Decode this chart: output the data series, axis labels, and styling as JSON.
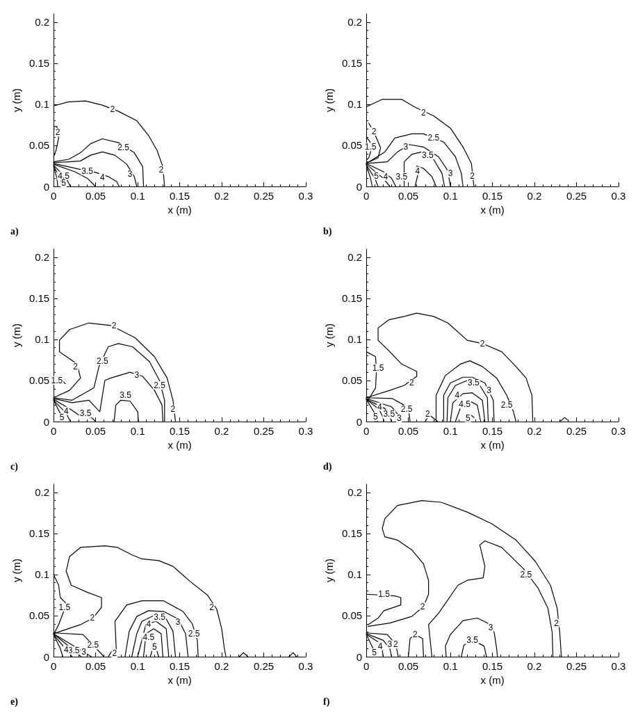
{
  "chart_data": [
    {
      "type": "line",
      "title": "a)",
      "xlabel": "x (m)",
      "ylabel": "y (m)",
      "xlim": [
        0,
        0.3
      ],
      "ylim": [
        0,
        0.21
      ],
      "xticks": [
        0,
        0.05,
        0.1,
        0.15,
        0.2,
        0.25,
        0.3
      ],
      "yticks": [
        0,
        0.05,
        0.1,
        0.15,
        0.2
      ],
      "marker": "none",
      "line_style": "solid",
      "series": [
        {
          "color": "#000000",
          "x": [
            0,
            0.018,
            0.038,
            0.058,
            0.076,
            0.099,
            0.113,
            0.123,
            0.13,
            0.132
          ],
          "values": [
            0.098,
            0.103,
            0.104,
            0.099,
            0.092,
            0.08,
            0.062,
            0.044,
            0.024,
            0
          ]
        },
        {
          "color": "#000000",
          "x": [
            0,
            0.004,
            0.006,
            0.003,
            0
          ],
          "values": [
            0.073,
            0.073,
            0.059,
            0.044,
            0.036
          ]
        },
        {
          "color": "#000000",
          "x": [
            0,
            0.018,
            0.032,
            0.044,
            0.058,
            0.078,
            0.096,
            0.106,
            0.107
          ],
          "values": [
            0.03,
            0.033,
            0.041,
            0.052,
            0.058,
            0.053,
            0.041,
            0.024,
            0
          ]
        },
        {
          "color": "#000000",
          "x": [
            0,
            0.018,
            0.032,
            0.044,
            0.058,
            0.073,
            0.087,
            0.096,
            0.099
          ],
          "values": [
            0.029,
            0.03,
            0.031,
            0.038,
            0.042,
            0.038,
            0.027,
            0.012,
            0
          ]
        },
        {
          "color": "#000000",
          "x": [
            0,
            0.03,
            0.05,
            0.065,
            0.075,
            0.078
          ],
          "values": [
            0.028,
            0.021,
            0.017,
            0.012,
            0.006,
            0
          ]
        },
        {
          "color": "#000000",
          "x": [
            0,
            0.025,
            0.04,
            0.05
          ],
          "values": [
            0.027,
            0.018,
            0.01,
            0
          ]
        },
        {
          "color": "#000000",
          "x": [
            0,
            0.015,
            0.02
          ],
          "values": [
            0.026,
            0.01,
            0
          ]
        },
        {
          "color": "#000000",
          "x": [
            0,
            0.008,
            0.01
          ],
          "values": [
            0.025,
            0.01,
            0
          ]
        },
        {
          "color": "#000000",
          "x": [
            0,
            0.004,
            0.005
          ],
          "values": [
            0.024,
            0.01,
            0
          ]
        }
      ],
      "annotations": [
        {
          "text": "2",
          "x": 0.07,
          "y": 0.094
        },
        {
          "text": "2",
          "x": 0.005,
          "y": 0.066
        },
        {
          "text": "2",
          "x": 0.128,
          "y": 0.02
        },
        {
          "text": "2.5",
          "x": 0.083,
          "y": 0.047
        },
        {
          "text": "3",
          "x": 0.091,
          "y": 0.015
        },
        {
          "text": "3.5",
          "x": 0.04,
          "y": 0.019
        },
        {
          "text": "4",
          "x": 0.058,
          "y": 0.011
        },
        {
          "text": "4.5",
          "x": 0.012,
          "y": 0.013
        },
        {
          "text": "5",
          "x": 0.012,
          "y": 0.004
        }
      ]
    },
    {
      "type": "line",
      "title": "b)",
      "xlabel": "x (m)",
      "ylabel": "y (m)",
      "xlim": [
        0,
        0.3
      ],
      "ylim": [
        0,
        0.21
      ],
      "xticks": [
        0,
        0.05,
        0.1,
        0.15,
        0.2,
        0.25,
        0.3
      ],
      "yticks": [
        0,
        0.05,
        0.1,
        0.15,
        0.2
      ],
      "marker": "none",
      "line_style": "solid",
      "series": [
        {
          "color": "#000000",
          "x": [
            0,
            0.019,
            0.042,
            0.057,
            0.08,
            0.1,
            0.115,
            0.125,
            0.128
          ],
          "values": [
            0.097,
            0.106,
            0.106,
            0.097,
            0.086,
            0.071,
            0.048,
            0.028,
            0
          ]
        },
        {
          "color": "#000000",
          "x": [
            0.003,
            0.01,
            0.017,
            0.014,
            0.004
          ],
          "values": [
            0.077,
            0.064,
            0.047,
            0.035,
            0.03
          ]
        },
        {
          "color": "#000000",
          "x": [
            0,
            0.004,
            0.006,
            0.003,
            0
          ],
          "values": [
            0.06,
            0.055,
            0.045,
            0.035,
            0.032
          ]
        },
        {
          "color": "#000000",
          "x": [
            0,
            0.022,
            0.034,
            0.054,
            0.068,
            0.092,
            0.106,
            0.113,
            0.115
          ],
          "values": [
            0.028,
            0.042,
            0.059,
            0.064,
            0.064,
            0.054,
            0.036,
            0.016,
            0
          ]
        },
        {
          "color": "#000000",
          "x": [
            0,
            0.025,
            0.037,
            0.051,
            0.068,
            0.086,
            0.097,
            0.1
          ],
          "values": [
            0.028,
            0.03,
            0.042,
            0.051,
            0.048,
            0.036,
            0.019,
            0
          ]
        },
        {
          "color": "#000000",
          "x": [
            0.045,
            0.045,
            0.054,
            0.066,
            0.08,
            0.09,
            0.093
          ],
          "values": [
            0,
            0.03,
            0.039,
            0.042,
            0.033,
            0.016,
            0
          ]
        },
        {
          "color": "#000000",
          "x": [
            0.058,
            0.061,
            0.06,
            0.068,
            0.078,
            0.083
          ],
          "values": [
            0,
            0.013,
            0.025,
            0.022,
            0.012,
            0
          ]
        },
        {
          "color": "#000000",
          "x": [
            0,
            0.02,
            0.03,
            0.035
          ],
          "values": [
            0.028,
            0.018,
            0.01,
            0
          ]
        },
        {
          "color": "#000000",
          "x": [
            0,
            0.02,
            0.028
          ],
          "values": [
            0.027,
            0.01,
            0
          ]
        },
        {
          "color": "#000000",
          "x": [
            0,
            0.01,
            0.014
          ],
          "values": [
            0.026,
            0.01,
            0
          ]
        },
        {
          "color": "#000000",
          "x": [
            0,
            0.005,
            0.007
          ],
          "values": [
            0.026,
            0.01,
            0
          ]
        }
      ],
      "annotations": [
        {
          "text": "2",
          "x": 0.068,
          "y": 0.09
        },
        {
          "text": "2",
          "x": 0.126,
          "y": 0.013
        },
        {
          "text": "2",
          "x": 0.009,
          "y": 0.067
        },
        {
          "text": "1.5",
          "x": 0.005,
          "y": 0.048
        },
        {
          "text": "2.5",
          "x": 0.08,
          "y": 0.059
        },
        {
          "text": "3",
          "x": 0.047,
          "y": 0.048
        },
        {
          "text": "3.5",
          "x": 0.073,
          "y": 0.038
        },
        {
          "text": "3",
          "x": 0.1,
          "y": 0.016
        },
        {
          "text": "4",
          "x": 0.061,
          "y": 0.019
        },
        {
          "text": "3.5",
          "x": 0.042,
          "y": 0.012
        },
        {
          "text": "4",
          "x": 0.023,
          "y": 0.012
        },
        {
          "text": "5",
          "x": 0.012,
          "y": 0.013
        }
      ]
    },
    {
      "type": "line",
      "title": "c)",
      "xlabel": "x (m)",
      "ylabel": "y (m)",
      "xlim": [
        0,
        0.3
      ],
      "ylim": [
        0,
        0.21
      ],
      "xticks": [
        0,
        0.05,
        0.1,
        0.15,
        0.2,
        0.25,
        0.3
      ],
      "yticks": [
        0,
        0.05,
        0.1,
        0.15,
        0.2
      ],
      "marker": "none",
      "line_style": "solid",
      "series": [
        {
          "color": "#000000",
          "x": [
            0,
            0.019,
            0.032,
            0.028,
            0.007,
            0.007,
            0.019,
            0.042,
            0.068,
            0.097,
            0.12,
            0.135,
            0.142,
            0.145
          ],
          "values": [
            0.029,
            0.038,
            0.053,
            0.07,
            0.085,
            0.099,
            0.112,
            0.12,
            0.117,
            0.102,
            0.079,
            0.053,
            0.026,
            0
          ]
        },
        {
          "color": "#000000",
          "x": [
            0,
            0.01,
            0.014
          ],
          "values": [
            0.05,
            0.05,
            0.046
          ]
        },
        {
          "color": "#000000",
          "x": [
            0,
            0.022,
            0.048,
            0.054,
            0.065,
            0.077,
            0.094,
            0.114,
            0.126,
            0.132,
            0.132
          ],
          "values": [
            0.029,
            0.026,
            0.041,
            0.067,
            0.091,
            0.095,
            0.091,
            0.073,
            0.05,
            0.026,
            0
          ]
        },
        {
          "color": "#000000",
          "x": [
            0,
            0.022,
            0.042,
            0.055,
            0.061,
            0.068,
            0.091,
            0.106,
            0.12,
            0.129,
            0.13
          ],
          "values": [
            0.028,
            0.023,
            0.026,
            0.012,
            0.05,
            0.053,
            0.06,
            0.055,
            0.038,
            0.02,
            0
          ]
        },
        {
          "color": "#000000",
          "x": [
            0.072,
            0.074,
            0.08,
            0.091,
            0.1,
            0.101
          ],
          "values": [
            0,
            0.02,
            0.026,
            0.025,
            0.012,
            0
          ]
        },
        {
          "color": "#000000",
          "x": [
            0,
            0.02,
            0.03,
            0.045,
            0.05
          ],
          "values": [
            0.027,
            0.015,
            0.008,
            0.005,
            0
          ]
        },
        {
          "color": "#000000",
          "x": [
            0,
            0.015,
            0.02
          ],
          "values": [
            0.026,
            0.01,
            0
          ]
        },
        {
          "color": "#000000",
          "x": [
            0,
            0.008,
            0.01
          ],
          "values": [
            0.026,
            0.01,
            0
          ]
        }
      ],
      "annotations": [
        {
          "text": "2",
          "x": 0.072,
          "y": 0.117
        },
        {
          "text": "2",
          "x": 0.026,
          "y": 0.067
        },
        {
          "text": "1.5",
          "x": 0.004,
          "y": 0.05
        },
        {
          "text": "2.5",
          "x": 0.058,
          "y": 0.074
        },
        {
          "text": "3",
          "x": 0.099,
          "y": 0.057
        },
        {
          "text": "2.5",
          "x": 0.126,
          "y": 0.044
        },
        {
          "text": "2",
          "x": 0.142,
          "y": 0.015
        },
        {
          "text": "3.5",
          "x": 0.0855,
          "y": 0.032
        },
        {
          "text": "3.5",
          "x": 0.038,
          "y": 0.01
        },
        {
          "text": "4",
          "x": 0.015,
          "y": 0.013
        },
        {
          "text": "5",
          "x": 0.01,
          "y": 0.005
        }
      ]
    },
    {
      "type": "line",
      "title": "d)",
      "xlabel": "x (m)",
      "ylabel": "y (m)",
      "xlim": [
        0,
        0.3
      ],
      "ylim": [
        0,
        0.21
      ],
      "xticks": [
        0,
        0.05,
        0.1,
        0.15,
        0.2,
        0.25,
        0.3
      ],
      "yticks": [
        0,
        0.05,
        0.1,
        0.15,
        0.2
      ],
      "marker": "none",
      "line_style": "solid",
      "series": [
        {
          "color": "#000000",
          "x": [
            0,
            0.028,
            0.045,
            0.06,
            0.06,
            0.042,
            0.028,
            0.014,
            0.014,
            0.027,
            0.045,
            0.06,
            0.08,
            0.097,
            0.12,
            0.138,
            0.161,
            0.178,
            0.19,
            0.197,
            0.198
          ],
          "values": [
            0.029,
            0.038,
            0.044,
            0.055,
            0.061,
            0.07,
            0.085,
            0.099,
            0.114,
            0.124,
            0.128,
            0.132,
            0.128,
            0.12,
            0.099,
            0.095,
            0.085,
            0.067,
            0.053,
            0.032,
            0
          ]
        },
        {
          "color": "#000000",
          "x": [
            0,
            0.011,
            0.012,
            0.011,
            0.002
          ],
          "values": [
            0.085,
            0.079,
            0.061,
            0.041,
            0.026
          ]
        },
        {
          "color": "#000000",
          "x": [
            0.07,
            0.075,
            0.085
          ],
          "values": [
            0,
            0.008,
            0
          ]
        },
        {
          "color": "#000000",
          "x": [
            0.083,
            0.083,
            0.094,
            0.112,
            0.123,
            0.138,
            0.155,
            0.167,
            0.175,
            0.178
          ],
          "values": [
            0,
            0.032,
            0.056,
            0.07,
            0.074,
            0.067,
            0.053,
            0.032,
            0.012,
            0
          ]
        },
        {
          "color": "#000000",
          "x": [
            0.092,
            0.092,
            0.1,
            0.115,
            0.126,
            0.141,
            0.151,
            0.152
          ],
          "values": [
            0,
            0.032,
            0.047,
            0.054,
            0.054,
            0.047,
            0.026,
            0
          ]
        },
        {
          "color": "#000000",
          "x": [
            0.096,
            0.097,
            0.106,
            0.12,
            0.135,
            0.144,
            0.145
          ],
          "values": [
            0,
            0.029,
            0.044,
            0.05,
            0.044,
            0.029,
            0
          ]
        },
        {
          "color": "#000000",
          "x": [
            0.1,
            0.103,
            0.115,
            0.126,
            0.138,
            0.141
          ],
          "values": [
            0,
            0.023,
            0.034,
            0.035,
            0.026,
            0
          ]
        },
        {
          "color": "#000000",
          "x": [
            0.106,
            0.112,
            0.123,
            0.132,
            0.136
          ],
          "values": [
            0,
            0.017,
            0.025,
            0.02,
            0
          ]
        },
        {
          "color": "#000000",
          "x": [
            0.12,
            0.123,
            0.128
          ],
          "values": [
            0,
            0.009,
            0.005
          ]
        },
        {
          "color": "#000000",
          "x": [
            0.23,
            0.236,
            0.239
          ],
          "values": [
            0,
            0.005,
            0.002
          ]
        },
        {
          "color": "#000000",
          "x": [
            0,
            0.031,
            0.045,
            0.051,
            0.052
          ],
          "values": [
            0.029,
            0.028,
            0.02,
            0.009,
            0
          ]
        },
        {
          "color": "#000000",
          "x": [
            0,
            0.03,
            0.038,
            0.04
          ],
          "values": [
            0.028,
            0.018,
            0.008,
            0
          ]
        },
        {
          "color": "#000000",
          "x": [
            0,
            0.022,
            0.028,
            0.03
          ],
          "values": [
            0.027,
            0.016,
            0.006,
            0
          ]
        },
        {
          "color": "#000000",
          "x": [
            0,
            0.015,
            0.02,
            0.021
          ],
          "values": [
            0.027,
            0.015,
            0.005,
            0
          ]
        },
        {
          "color": "#000000",
          "x": [
            0,
            0.01,
            0.013
          ],
          "values": [
            0.027,
            0.01,
            0
          ]
        }
      ],
      "annotations": [
        {
          "text": "2",
          "x": 0.138,
          "y": 0.095
        },
        {
          "text": "2",
          "x": 0.054,
          "y": 0.047
        },
        {
          "text": "1.5",
          "x": 0.014,
          "y": 0.065
        },
        {
          "text": "2",
          "x": 0.073,
          "y": 0.009
        },
        {
          "text": "2.5",
          "x": 0.167,
          "y": 0.02
        },
        {
          "text": "3",
          "x": 0.146,
          "y": 0.038
        },
        {
          "text": "3.5",
          "x": 0.1275,
          "y": 0.047
        },
        {
          "text": "4",
          "x": 0.108,
          "y": 0.032
        },
        {
          "text": "4.5",
          "x": 0.117,
          "y": 0.021
        },
        {
          "text": "5",
          "x": 0.121,
          "y": 0.0045
        },
        {
          "text": "2.5",
          "x": 0.048,
          "y": 0.015
        },
        {
          "text": "3",
          "x": 0.039,
          "y": 0.004
        },
        {
          "text": "3.5",
          "x": 0.027,
          "y": 0.009
        },
        {
          "text": "4",
          "x": 0.016,
          "y": 0.018
        },
        {
          "text": "5",
          "x": 0.011,
          "y": 0.006
        }
      ]
    },
    {
      "type": "line",
      "title": "e)",
      "xlabel": "x (m)",
      "ylabel": "y (m)",
      "xlim": [
        0,
        0.3
      ],
      "ylim": [
        0,
        0.21
      ],
      "xticks": [
        0,
        0.05,
        0.1,
        0.15,
        0.2,
        0.25,
        0.3
      ],
      "yticks": [
        0,
        0.05,
        0.1,
        0.15,
        0.2
      ],
      "marker": "none",
      "line_style": "solid",
      "series": [
        {
          "color": "#000000",
          "x": [
            0,
            0.032,
            0.047,
            0.057,
            0.057,
            0.041,
            0.021,
            0.015,
            0.019,
            0.032,
            0.061,
            0.076,
            0.093,
            0.105,
            0.125,
            0.142,
            0.162,
            0.183,
            0.194,
            0.2,
            0.203,
            0.205
          ],
          "values": [
            0.028,
            0.039,
            0.047,
            0.06,
            0.072,
            0.078,
            0.087,
            0.104,
            0.122,
            0.133,
            0.135,
            0.133,
            0.124,
            0.119,
            0.117,
            0.11,
            0.092,
            0.075,
            0.058,
            0.034,
            0.011,
            0
          ]
        },
        {
          "color": "#000000",
          "x": [
            0,
            0.006,
            0.008,
            0.014,
            0.012,
            0.006,
            0.002
          ],
          "values": [
            0.1,
            0.087,
            0.072,
            0.066,
            0.055,
            0.039,
            0.031
          ]
        },
        {
          "color": "#000000",
          "x": [
            0.075,
            0.073,
            0.087,
            0.105,
            0.131,
            0.154,
            0.165,
            0.171,
            0.172
          ],
          "values": [
            0,
            0.043,
            0.063,
            0.068,
            0.068,
            0.055,
            0.04,
            0.02,
            0
          ]
        },
        {
          "color": "#000000",
          "x": [
            0.085,
            0.09,
            0.099,
            0.113,
            0.131,
            0.148,
            0.157,
            0.16
          ],
          "values": [
            0,
            0.031,
            0.049,
            0.056,
            0.055,
            0.046,
            0.028,
            0
          ]
        },
        {
          "color": "#000000",
          "x": [
            0.093,
            0.099,
            0.105,
            0.119,
            0.134,
            0.142,
            0.145
          ],
          "values": [
            0,
            0.028,
            0.043,
            0.05,
            0.046,
            0.031,
            0
          ]
        },
        {
          "color": "#000000",
          "x": [
            0.1,
            0.11,
            0.122,
            0.134,
            0.137
          ],
          "values": [
            0,
            0.04,
            0.043,
            0.034,
            0
          ]
        },
        {
          "color": "#000000",
          "x": [
            0.107,
            0.11,
            0.119,
            0.128,
            0.13
          ],
          "values": [
            0,
            0.028,
            0.034,
            0.028,
            0
          ]
        },
        {
          "color": "#000000",
          "x": [
            0.115,
            0.12,
            0.125
          ],
          "values": [
            0,
            0.017,
            0
          ]
        },
        {
          "color": "#000000",
          "x": [
            0.065,
            0.07,
            0.075
          ],
          "values": [
            0,
            0.008,
            0
          ]
        },
        {
          "color": "#000000",
          "x": [
            0.221,
            0.226,
            0.231
          ],
          "values": [
            0,
            0.005,
            0
          ]
        },
        {
          "color": "#000000",
          "x": [
            0.28,
            0.285,
            0.289
          ],
          "values": [
            0,
            0.005,
            0
          ]
        },
        {
          "color": "#000000",
          "x": [
            0,
            0.035,
            0.06
          ],
          "values": [
            0.029,
            0.027,
            0
          ]
        },
        {
          "color": "#000000",
          "x": [
            0,
            0.045
          ],
          "values": [
            0.028,
            0
          ]
        },
        {
          "color": "#000000",
          "x": [
            0,
            0.033
          ],
          "values": [
            0.028,
            0
          ]
        },
        {
          "color": "#000000",
          "x": [
            0,
            0.022
          ],
          "values": [
            0.027,
            0
          ]
        },
        {
          "color": "#000000",
          "x": [
            0,
            0.008,
            0.011
          ],
          "values": [
            0.027,
            0.01,
            0
          ]
        }
      ],
      "annotations": [
        {
          "text": "2",
          "x": 0.188,
          "y": 0.06
        },
        {
          "text": "2",
          "x": 0.046,
          "y": 0.047
        },
        {
          "text": "1.5",
          "x": 0.013,
          "y": 0.06
        },
        {
          "text": "2.5",
          "x": 0.167,
          "y": 0.028
        },
        {
          "text": "3",
          "x": 0.148,
          "y": 0.042
        },
        {
          "text": "3.5",
          "x": 0.126,
          "y": 0.048
        },
        {
          "text": "4",
          "x": 0.113,
          "y": 0.04
        },
        {
          "text": "4.5",
          "x": 0.113,
          "y": 0.024
        },
        {
          "text": "5",
          "x": 0.12,
          "y": 0.012
        },
        {
          "text": "2",
          "x": 0.0725,
          "y": 0.004
        },
        {
          "text": "2.5",
          "x": 0.047,
          "y": 0.014
        },
        {
          "text": "3",
          "x": 0.036,
          "y": 0.0056
        },
        {
          "text": "3.5",
          "x": 0.024,
          "y": 0.0076
        },
        {
          "text": "4",
          "x": 0.015,
          "y": 0.0086
        }
      ]
    },
    {
      "type": "line",
      "title": "f)",
      "xlabel": "x (m)",
      "ylabel": "y (m)",
      "xlim": [
        0,
        0.3
      ],
      "ylim": [
        0,
        0.21
      ],
      "xticks": [
        0,
        0.05,
        0.1,
        0.15,
        0.2,
        0.25,
        0.3
      ],
      "yticks": [
        0,
        0.05,
        0.1,
        0.15,
        0.2
      ],
      "marker": "none",
      "line_style": "solid",
      "series": [
        {
          "color": "#000000",
          "x": [
            0.002,
            0.028,
            0.054,
            0.068,
            0.074,
            0.074,
            0.068,
            0.054,
            0.037,
            0.022,
            0.019,
            0.022,
            0.037,
            0.066,
            0.089,
            0.12,
            0.149,
            0.178,
            0.201,
            0.219,
            0.227,
            0.23,
            0.232
          ],
          "values": [
            0.037,
            0.041,
            0.049,
            0.061,
            0.076,
            0.093,
            0.113,
            0.13,
            0.142,
            0.146,
            0.156,
            0.168,
            0.184,
            0.19,
            0.188,
            0.176,
            0.162,
            0.142,
            0.116,
            0.087,
            0.059,
            0.03,
            0
          ]
        },
        {
          "color": "#000000",
          "x": [
            0.078,
            0.077,
            0.074,
            0.086,
            0.109,
            0.12,
            0.139,
            0.141,
            0.135,
            0.141,
            0.161,
            0.187,
            0.204,
            0.216,
            0.221,
            0.222
          ],
          "values": [
            0,
            0.01,
            0.039,
            0.053,
            0.087,
            0.093,
            0.096,
            0.11,
            0.136,
            0.141,
            0.133,
            0.107,
            0.084,
            0.059,
            0.03,
            0
          ]
        },
        {
          "color": "#000000",
          "x": [
            0,
            0.034,
            0.041,
            0.041,
            0.021,
            0.014,
            0.002
          ],
          "values": [
            0.076,
            0.074,
            0.072,
            0.063,
            0.056,
            0.047,
            0.039
          ]
        },
        {
          "color": "#000000",
          "x": [
            0.05,
            0.052,
            0.058,
            0.067,
            0.068
          ],
          "values": [
            0,
            0.022,
            0.027,
            0.022,
            0
          ]
        },
        {
          "color": "#000000",
          "x": [
            0.095,
            0.094,
            0.1,
            0.115,
            0.132,
            0.144,
            0.152,
            0.155,
            0.156
          ],
          "values": [
            0,
            0.013,
            0.027,
            0.044,
            0.047,
            0.041,
            0.03,
            0.01,
            0
          ]
        },
        {
          "color": "#000000",
          "x": [
            0.113,
            0.116,
            0.126,
            0.14,
            0.143
          ],
          "values": [
            0,
            0.014,
            0.02,
            0.013,
            0
          ]
        },
        {
          "color": "#000000",
          "x": [
            0,
            0.025,
            0.035,
            0.038
          ],
          "values": [
            0.029,
            0.027,
            0.015,
            0
          ]
        },
        {
          "color": "#000000",
          "x": [
            0,
            0.02,
            0.028,
            0.03
          ],
          "values": [
            0.028,
            0.02,
            0.01,
            0
          ]
        },
        {
          "color": "#000000",
          "x": [
            0,
            0.014,
            0.019,
            0.02
          ],
          "values": [
            0.027,
            0.018,
            0.008,
            0
          ]
        },
        {
          "color": "#000000",
          "x": [
            0,
            0.008,
            0.011
          ],
          "values": [
            0.027,
            0.01,
            0
          ]
        }
      ],
      "annotations": [
        {
          "text": "2",
          "x": 0.226,
          "y": 0.041
        },
        {
          "text": "2",
          "x": 0.067,
          "y": 0.061
        },
        {
          "text": "2.5",
          "x": 0.19,
          "y": 0.1
        },
        {
          "text": "1.5",
          "x": 0.021,
          "y": 0.076
        },
        {
          "text": "2",
          "x": 0.058,
          "y": 0.027
        },
        {
          "text": "3",
          "x": 0.148,
          "y": 0.0355
        },
        {
          "text": "3.5",
          "x": 0.126,
          "y": 0.02
        },
        {
          "text": "2",
          "x": 0.035,
          "y": 0.015
        },
        {
          "text": "3",
          "x": 0.028,
          "y": 0.015
        },
        {
          "text": "4",
          "x": 0.0165,
          "y": 0.013
        },
        {
          "text": "5",
          "x": 0.0095,
          "y": 0.005
        }
      ]
    }
  ]
}
